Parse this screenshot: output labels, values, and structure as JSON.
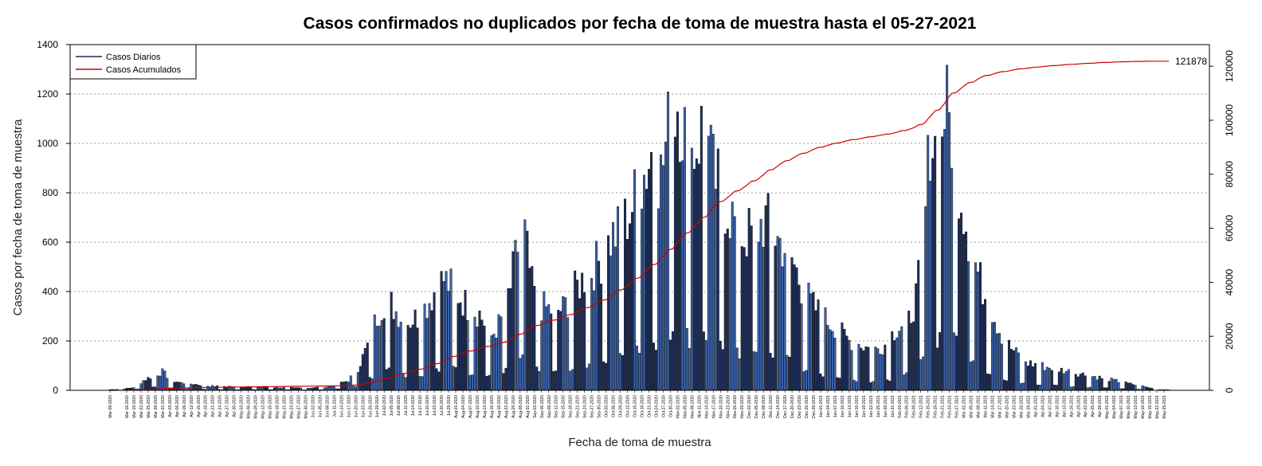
{
  "chart_data": {
    "type": "bar",
    "title": "Casos confirmados no duplicados por fecha de toma de muestra hasta el 05-27-2021",
    "xlabel": "Fecha de toma de muestra",
    "ylabel": "Casos por fecha de toma de muestra",
    "ylim": [
      0,
      1400
    ],
    "y_ticks": [
      0,
      200,
      400,
      600,
      800,
      1000,
      1200,
      1400
    ],
    "y2lim": [
      0,
      128000
    ],
    "y2_ticks": [
      0,
      20000,
      40000,
      60000,
      80000,
      100000,
      120000
    ],
    "grid": "horizontal-dotted",
    "legend_position": "top-left",
    "start_date": "2020-03-09",
    "end_date": "2021-05-27",
    "cumulative_final_label": "121878",
    "x_tick_labels": [
      "Mar-09-2020",
      "Mar-16-2020",
      "Mar-19-2020",
      "Mar-22-2020",
      "Mar-25-2020",
      "Mar-28-2020",
      "Mar-31-2020",
      "Apr-03-2020",
      "Apr-06-2020",
      "Apr-09-2020",
      "Apr-12-2020",
      "Apr-15-2020",
      "Apr-18-2020",
      "Apr-21-2020",
      "Apr-24-2020",
      "Apr-27-2020",
      "Apr-30-2020",
      "May-03-2020",
      "May-06-2020",
      "May-09-2020",
      "May-12-2020",
      "May-15-2020",
      "May-18-2020",
      "May-21-2020",
      "May-24-2020",
      "May-27-2020",
      "May-30-2020",
      "Jun-02-2020",
      "Jun-05-2020",
      "Jun-08-2020",
      "Jun-11-2020",
      "Jun-14-2020",
      "Jun-17-2020",
      "Jun-20-2020",
      "Jun-23-2020",
      "Jun-26-2020",
      "Jun-29-2020",
      "Jul-02-2020",
      "Jul-05-2020",
      "Jul-08-2020",
      "Jul-11-2020",
      "Jul-14-2020",
      "Jul-17-2020",
      "Jul-20-2020",
      "Jul-23-2020",
      "Jul-26-2020",
      "Jul-29-2020",
      "Aug-01-2020",
      "Aug-04-2020",
      "Aug-07-2020",
      "Aug-10-2020",
      "Aug-13-2020",
      "Aug-16-2020",
      "Aug-19-2020",
      "Aug-22-2020",
      "Aug-25-2020",
      "Aug-28-2020",
      "Aug-31-2020",
      "Sep-03-2020",
      "Sep-06-2020",
      "Sep-09-2020",
      "Sep-12-2020",
      "Sep-15-2020",
      "Sep-18-2020",
      "Sep-21-2020",
      "Sep-24-2020",
      "Sep-27-2020",
      "Sep-30-2020",
      "Oct-03-2020",
      "Oct-06-2020",
      "Oct-09-2020",
      "Oct-12-2020",
      "Oct-15-2020",
      "Oct-18-2020",
      "Oct-21-2020",
      "Oct-24-2020",
      "Oct-27-2020",
      "Oct-30-2020",
      "Nov-02-2020",
      "Nov-05-2020",
      "Nov-08-2020",
      "Nov-11-2020",
      "Nov-14-2020",
      "Nov-17-2020",
      "Nov-20-2020",
      "Nov-23-2020",
      "Nov-26-2020",
      "Nov-29-2020",
      "Dec-02-2020",
      "Dec-05-2020",
      "Dec-08-2020",
      "Dec-11-2020",
      "Dec-14-2020",
      "Dec-17-2020",
      "Dec-20-2020",
      "Dec-23-2020",
      "Dec-26-2020",
      "Dec-29-2020",
      "Jan-01-2021",
      "Jan-04-2021",
      "Jan-07-2021",
      "Jan-10-2021",
      "Jan-13-2021",
      "Jan-16-2021",
      "Jan-19-2021",
      "Jan-22-2021",
      "Jan-25-2021",
      "Jan-28-2021",
      "Jan-31-2021",
      "Feb-03-2021",
      "Feb-06-2021",
      "Feb-09-2021",
      "Feb-12-2021",
      "Feb-15-2021",
      "Feb-18-2021",
      "Feb-21-2021",
      "Feb-24-2021",
      "Feb-27-2021",
      "Mar-02-2021",
      "Mar-05-2021",
      "Mar-08-2021",
      "Mar-11-2021",
      "Mar-14-2021",
      "Mar-17-2021",
      "Mar-20-2021",
      "Mar-23-2021",
      "Mar-26-2021",
      "Mar-29-2021",
      "Apr-01-2021",
      "Apr-04-2021",
      "Apr-07-2021",
      "Apr-10-2021",
      "Apr-13-2021",
      "Apr-16-2021",
      "Apr-19-2021",
      "Apr-22-2021",
      "Apr-25-2021",
      "Apr-28-2021",
      "May-01-2021",
      "May-04-2021",
      "May-07-2021",
      "May-10-2021",
      "May-13-2021",
      "May-16-2021",
      "May-19-2021",
      "May-22-2021",
      "May-25-2021"
    ],
    "series": [
      {
        "name": "Casos Diarios",
        "color": "#1f2d55",
        "daily_anchors": [
          [
            0,
            3
          ],
          [
            6,
            6
          ],
          [
            10,
            12
          ],
          [
            14,
            40
          ],
          [
            18,
            60
          ],
          [
            22,
            75
          ],
          [
            26,
            40
          ],
          [
            30,
            30
          ],
          [
            36,
            25
          ],
          [
            40,
            18
          ],
          [
            48,
            15
          ],
          [
            55,
            15
          ],
          [
            65,
            14
          ],
          [
            75,
            10
          ],
          [
            85,
            10
          ],
          [
            92,
            15
          ],
          [
            97,
            30
          ],
          [
            100,
            40
          ],
          [
            104,
            90
          ],
          [
            108,
            180
          ],
          [
            112,
            300
          ],
          [
            116,
            380
          ],
          [
            120,
            320
          ],
          [
            125,
            280
          ],
          [
            130,
            300
          ],
          [
            136,
            400
          ],
          [
            140,
            450
          ],
          [
            145,
            400
          ],
          [
            150,
            340
          ],
          [
            155,
            310
          ],
          [
            160,
            220
          ],
          [
            164,
            280
          ],
          [
            168,
            420
          ],
          [
            171,
            580
          ],
          [
            174,
            620
          ],
          [
            177,
            420
          ],
          [
            181,
            340
          ],
          [
            186,
            320
          ],
          [
            190,
            330
          ],
          [
            196,
            420
          ],
          [
            201,
            480
          ],
          [
            206,
            530
          ],
          [
            210,
            610
          ],
          [
            214,
            650
          ],
          [
            218,
            720
          ],
          [
            223,
            850
          ],
          [
            227,
            960
          ],
          [
            231,
            870
          ],
          [
            235,
            1100
          ],
          [
            238,
            1180
          ],
          [
            241,
            1050
          ],
          [
            243,
            950
          ],
          [
            246,
            1000
          ],
          [
            249,
            1080
          ],
          [
            253,
            880
          ],
          [
            257,
            780
          ],
          [
            261,
            700
          ],
          [
            265,
            620
          ],
          [
            270,
            640
          ],
          [
            275,
            690
          ],
          [
            280,
            610
          ],
          [
            285,
            560
          ],
          [
            290,
            420
          ],
          [
            295,
            340
          ],
          [
            300,
            290
          ],
          [
            305,
            250
          ],
          [
            310,
            200
          ],
          [
            315,
            185
          ],
          [
            320,
            160
          ],
          [
            325,
            185
          ],
          [
            330,
            255
          ],
          [
            335,
            280
          ],
          [
            338,
            380
          ],
          [
            341,
            560
          ],
          [
            344,
            1050
          ],
          [
            347,
            950
          ],
          [
            350,
            1150
          ],
          [
            353,
            1050
          ],
          [
            357,
            800
          ],
          [
            361,
            580
          ],
          [
            365,
            440
          ],
          [
            370,
            320
          ],
          [
            375,
            200
          ],
          [
            380,
            150
          ],
          [
            385,
            110
          ],
          [
            440,
            3
          ]
        ],
        "weekend_dip_weekdays": [
          5,
          6
        ],
        "weekend_dip_factor": 0.22
      },
      {
        "name": "Casos Acumulados",
        "color": "#cc0000",
        "cumulative_final": 121878
      }
    ]
  },
  "legend": {
    "items": [
      {
        "label": "Casos Diarios",
        "color": "#1f2d55"
      },
      {
        "label": "Casos Acumulados",
        "color": "#cc0000"
      }
    ]
  }
}
